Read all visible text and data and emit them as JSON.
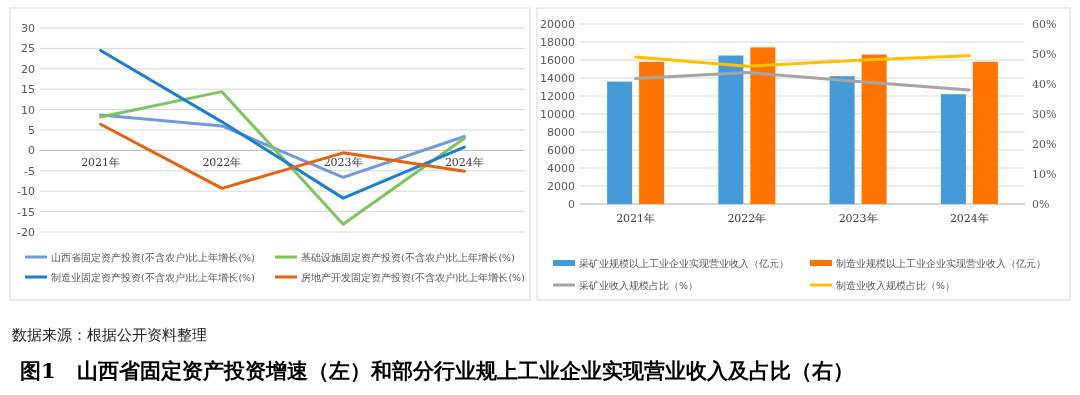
{
  "chart_data": [
    {
      "type": "line",
      "categories": [
        "2021年",
        "2022年",
        "2023年",
        "2024年"
      ],
      "ylim": [
        -20,
        30
      ],
      "yticks": [
        -20,
        -15,
        -10,
        -5,
        0,
        5,
        10,
        15,
        20,
        25,
        30
      ],
      "grid": "y",
      "legend": "bottom",
      "marker": "none",
      "line_style": "solid",
      "series": [
        {
          "name": "山西省固定资产投资(不含农户)比上年增长(%)",
          "color": "#6f9ae0",
          "values": [
            8.7,
            6.0,
            -6.6,
            3.4
          ]
        },
        {
          "name": "基础设施固定资产投资(不含农户)比上年增长(%)",
          "color": "#7ac65a",
          "values": [
            8.2,
            14.4,
            -18.1,
            3.0
          ]
        },
        {
          "name": "制造业固定资产投资(不含农户)比上年增长(%)",
          "color": "#1a7fd4",
          "values": [
            24.5,
            7.0,
            -11.7,
            0.8
          ]
        },
        {
          "name": "房地产开发固定资产投资(不含农户)比上年增长(%)",
          "color": "#e8620c",
          "values": [
            6.4,
            -9.3,
            -0.6,
            -5.1
          ]
        }
      ]
    },
    {
      "type": "bar",
      "categories": [
        "2021年",
        "2022年",
        "2023年",
        "2024年"
      ],
      "ylim": [
        0,
        20000
      ],
      "yticks": [
        0,
        2000,
        4000,
        6000,
        8000,
        10000,
        12000,
        14000,
        16000,
        18000,
        20000
      ],
      "y2lim": [
        0,
        60
      ],
      "y2ticks": [
        {
          "value": 0,
          "label": "0%"
        },
        {
          "value": 10,
          "label": "10%"
        },
        {
          "value": 20,
          "label": "20%"
        },
        {
          "value": 30,
          "label": "30%"
        },
        {
          "value": 40,
          "label": "40%"
        },
        {
          "value": 50,
          "label": "50%"
        },
        {
          "value": 60,
          "label": "60%"
        }
      ],
      "grid": "y",
      "legend": "bottom",
      "series": [
        {
          "name": "采矿业规模以上工业企业实现营业收入（亿元）",
          "color": "#449bd8",
          "values": [
            13600,
            16500,
            14200,
            12200
          ]
        },
        {
          "name": "制造业规模以上工业企业实现营业收入（亿元）",
          "color": "#ff7400",
          "values": [
            15800,
            17400,
            16600,
            15800
          ]
        },
        {
          "name": "采矿业收入规模占比（%）",
          "color": "#a5a5a5",
          "type": "line",
          "axis": "y2",
          "values": [
            41.8,
            43.8,
            40.8,
            38.0
          ]
        },
        {
          "name": "制造业收入规模占比（%）",
          "color": "#ffc000",
          "type": "line",
          "axis": "y2",
          "values": [
            49.0,
            45.9,
            47.9,
            49.4
          ]
        }
      ],
      "annotations": [
        "数据来源：根据公开资料整理",
        "图1　山西省固定资产投资增速（左）和部分行业规上工业企业实现营业收入及占比（右）"
      ]
    }
  ]
}
